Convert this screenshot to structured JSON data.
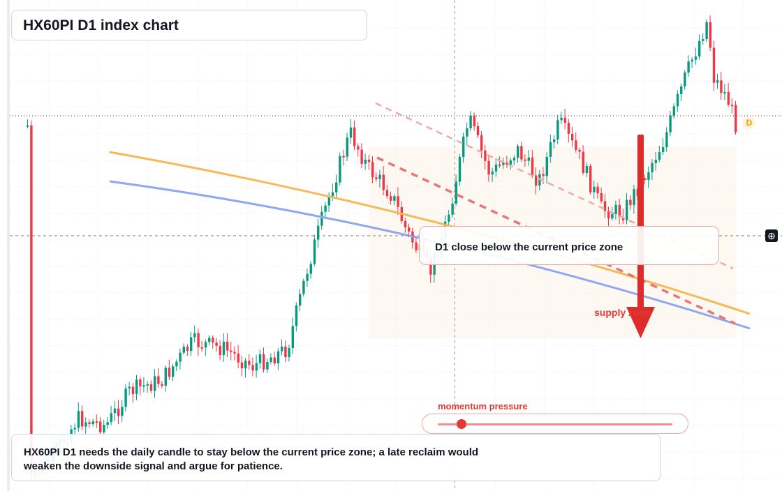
{
  "title": "HX60PI D1 index chart",
  "signal_box": {
    "text": "D1 close below the current price zone"
  },
  "zone_label": "supply zone",
  "momentum": {
    "label": "momentum pressure",
    "level": 0.1
  },
  "note": "HX60PI D1 needs the daily candle to stay below the current price zone; a late reclaim would weaken the downside signal and argue for patience.",
  "marker": {
    "label": "D"
  },
  "crosshair_button": {
    "icon": "crosshair-plus-icon",
    "glyph": "⊕"
  },
  "colors": {
    "bullish": "#089981",
    "bearish": "#f23645",
    "signal": "#e53935",
    "orange_line": "#f7b955",
    "blue_line": "#8ea8f2"
  }
}
